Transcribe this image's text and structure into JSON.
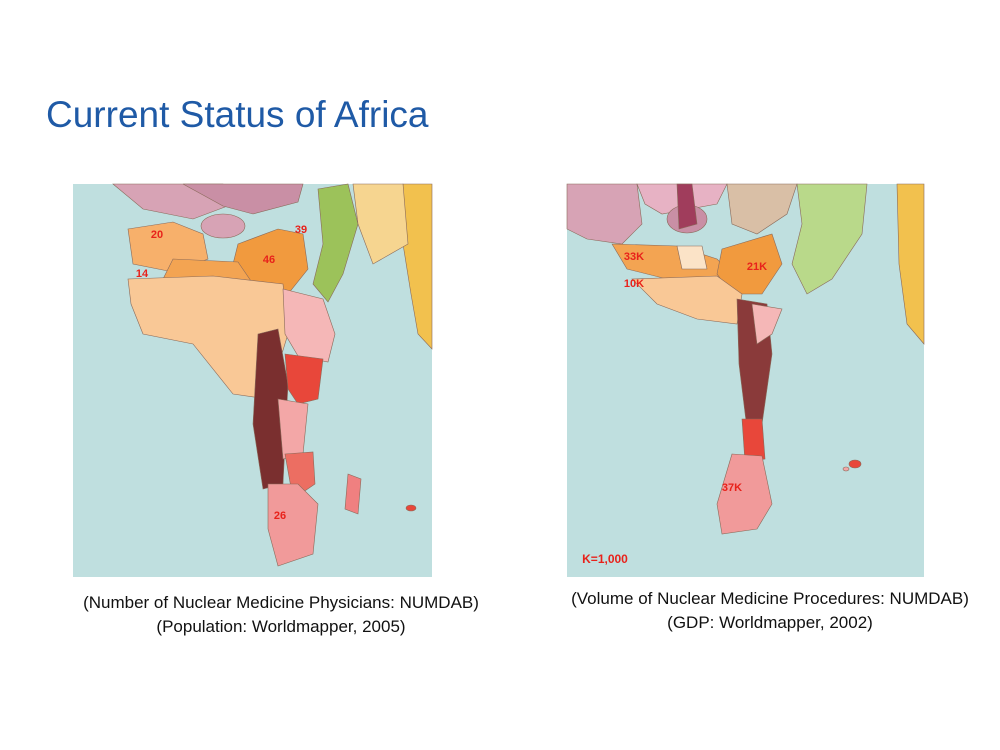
{
  "title": "Current Status of Africa",
  "maps": [
    {
      "labels": [
        "20",
        "39",
        "46",
        "14",
        "26"
      ],
      "caption": [
        "(Number of Nuclear Medicine Physicians: NUMDAB)",
        "(Population: Worldmapper, 2005)"
      ]
    },
    {
      "labels": [
        "33K",
        "21K",
        "10K",
        "37K"
      ],
      "note": "K=1,000",
      "caption": [
        "(Volume of Nuclear Medicine Procedures: NUMDAB)",
        "(GDP: Worldmapper, 2002)"
      ]
    }
  ]
}
